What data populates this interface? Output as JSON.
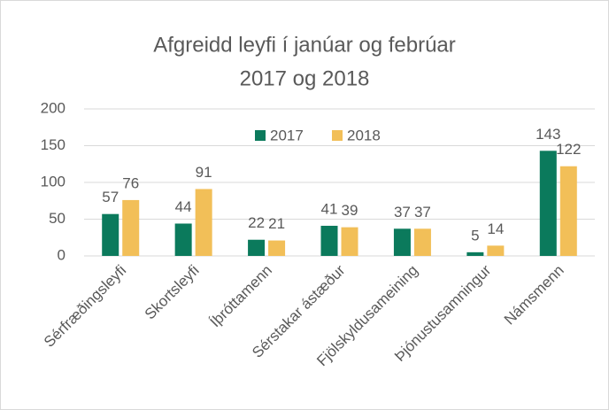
{
  "chart_data": {
    "type": "bar",
    "title": [
      "Afgreidd leyfi í janúar og febrúar",
      "2017 og 2018"
    ],
    "categories": [
      "Sérfræðingsleyfi",
      "Skortsleyfi",
      "Íþróttamenn",
      "Sérstakar ástæður",
      "Fjölskyldusameining",
      "Þjónustusamningur",
      "Námsmenn"
    ],
    "series": [
      {
        "name": "2017",
        "color": "#0b7a5c",
        "values": [
          57,
          44,
          22,
          41,
          37,
          5,
          143
        ]
      },
      {
        "name": "2018",
        "color": "#f2bf58",
        "values": [
          76,
          91,
          21,
          39,
          37,
          14,
          122
        ]
      }
    ],
    "ylim": [
      0,
      200
    ],
    "yticks": [
      0,
      50,
      100,
      150,
      200
    ],
    "grid": true,
    "legend": "top"
  }
}
